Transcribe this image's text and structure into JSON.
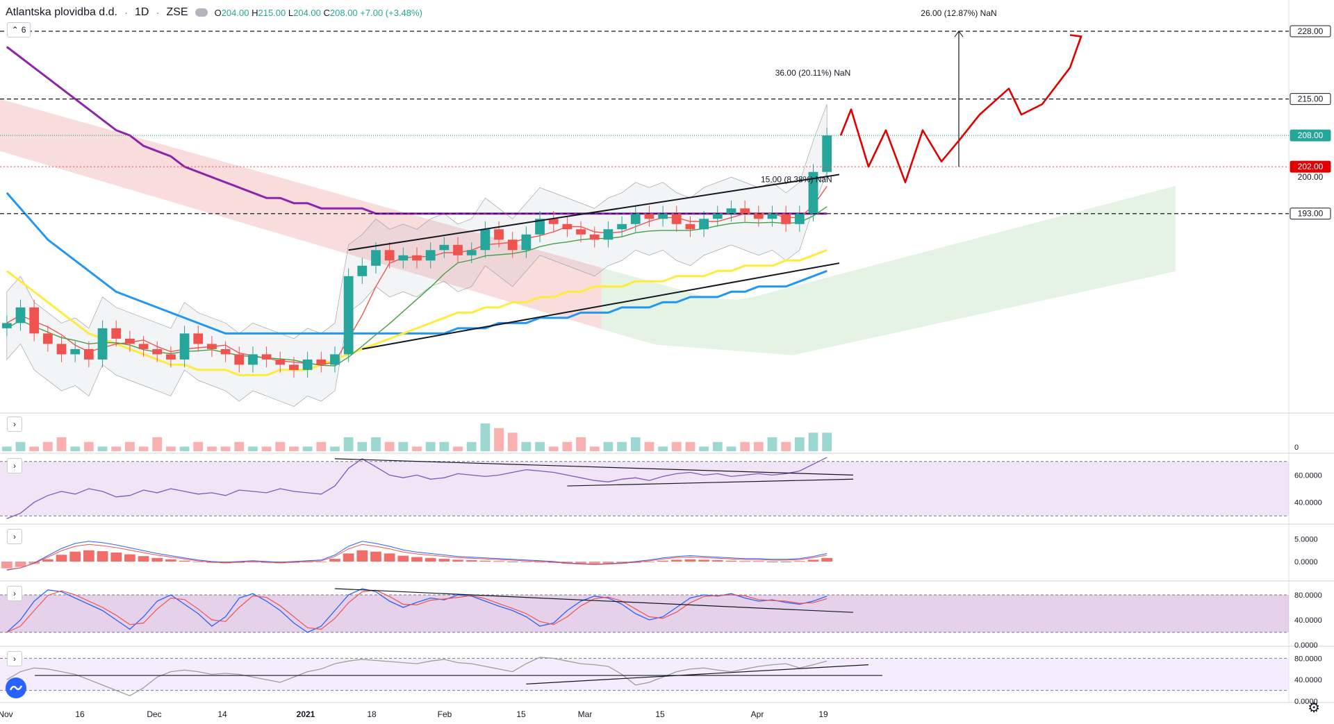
{
  "legend": {
    "symbol": "Atlantska plovidba d.d.",
    "interval": "1D",
    "exchange": "ZSE",
    "open_label": "O",
    "open": "204.00",
    "high_label": "H",
    "high": "215.00",
    "low_label": "L",
    "low": "204.00",
    "close_label": "C",
    "close": "208.00",
    "change": "+7.00 (+3.48%)",
    "indicator_count": "6"
  },
  "colors": {
    "up": "#26a69a",
    "down": "#ef5350",
    "ma200": "#8e24aa",
    "ma100": "#2196f3",
    "ma50": "#ffeb3b",
    "ichimoku_bull": "#a5d6a7",
    "ichimoku_bear": "#ef9a9a",
    "drawing": "#e00000"
  },
  "chart_data": [
    {
      "type": "line",
      "panel": "price",
      "ylim": [
        155,
        230
      ],
      "price_labels": [
        {
          "value": 228,
          "text": "228.00",
          "style": "dashed-line"
        },
        {
          "value": 215,
          "text": "215.00",
          "style": "dashed-line"
        },
        {
          "value": 208,
          "text": "208.00",
          "style": "last-price"
        },
        {
          "value": 202,
          "text": "202.00",
          "style": "red-dotted"
        },
        {
          "value": 200,
          "text": "200.00",
          "style": "tick"
        },
        {
          "value": 193,
          "text": "193.00",
          "style": "dashed-line"
        }
      ],
      "x_ticks": [
        "Nov",
        "16",
        "Dec",
        "14",
        "2021",
        "18",
        "Feb",
        "15",
        "Mar",
        "15",
        "Apr",
        "19"
      ],
      "annotations": [
        "26.00 (12.87%) NaN",
        "36.00 (20.11%) NaN",
        "15.00 (8.38%) NaN"
      ],
      "series": [
        {
          "name": "candles_close",
          "values": [
            172,
            175,
            170,
            168,
            166,
            167,
            165,
            171,
            169,
            168,
            167,
            166,
            165,
            170,
            168,
            167,
            166,
            164,
            166,
            165,
            164,
            163,
            165,
            164,
            166,
            181,
            183,
            186,
            184,
            185,
            184,
            186,
            187,
            185,
            186,
            190,
            188,
            186,
            189,
            192,
            191,
            190,
            189,
            188,
            190,
            191,
            193,
            192,
            193,
            191,
            190,
            192,
            193,
            194,
            193,
            192,
            193,
            191,
            193,
            201,
            208
          ]
        },
        {
          "name": "ma200",
          "values": [
            225,
            223,
            221,
            219,
            217,
            215,
            213,
            211,
            209,
            208,
            206,
            205,
            204,
            202,
            201,
            200,
            199,
            198,
            197,
            196,
            196,
            195,
            195,
            194,
            194,
            194,
            194,
            193,
            193,
            193,
            193,
            193,
            193,
            193,
            193,
            193,
            193,
            193,
            193,
            193,
            193,
            193,
            193,
            193,
            193,
            193,
            193,
            193,
            193,
            193,
            193,
            193,
            193,
            193,
            193,
            193,
            193,
            193,
            193,
            193,
            193
          ]
        },
        {
          "name": "ma100",
          "values": [
            197,
            194,
            191,
            188,
            186,
            184,
            182,
            180,
            178,
            177,
            176,
            175,
            174,
            173,
            172,
            171,
            170,
            170,
            170,
            170,
            170,
            170,
            170,
            170,
            170,
            170,
            170,
            170,
            170,
            170,
            170,
            170,
            170,
            171,
            171,
            171,
            172,
            172,
            172,
            173,
            173,
            173,
            174,
            174,
            174,
            175,
            175,
            175,
            176,
            176,
            177,
            177,
            177,
            178,
            178,
            179,
            179,
            179,
            180,
            181,
            182
          ]
        },
        {
          "name": "ma50",
          "values": [
            182,
            180,
            178,
            176,
            174,
            172,
            170,
            169,
            168,
            167,
            166,
            165,
            164,
            164,
            163,
            163,
            163,
            162,
            162,
            162,
            163,
            163,
            163,
            164,
            165,
            166,
            167,
            168,
            169,
            170,
            171,
            172,
            173,
            174,
            174,
            175,
            175,
            176,
            176,
            177,
            177,
            178,
            178,
            179,
            179,
            179,
            180,
            180,
            180,
            181,
            181,
            181,
            182,
            182,
            183,
            183,
            183,
            184,
            184,
            185,
            186
          ]
        }
      ]
    },
    {
      "type": "bar",
      "panel": "volume",
      "ylabels": [
        "0"
      ],
      "values": [
        1,
        2,
        1,
        2,
        3,
        1,
        2,
        1,
        1,
        2,
        1,
        3,
        1,
        1,
        2,
        1,
        1,
        2,
        1,
        1,
        2,
        1,
        1,
        2,
        1,
        3,
        2,
        3,
        2,
        2,
        1,
        2,
        2,
        1,
        2,
        6,
        5,
        4,
        2,
        2,
        1,
        2,
        3,
        1,
        2,
        2,
        3,
        2,
        1,
        2,
        2,
        1,
        2,
        1,
        2,
        2,
        3,
        2,
        3,
        4,
        4
      ]
    },
    {
      "type": "line",
      "panel": "rsi",
      "ylabels": [
        "60.0000",
        "40.0000"
      ],
      "ylim": [
        25,
        75
      ],
      "values": [
        28,
        32,
        40,
        45,
        48,
        46,
        50,
        48,
        44,
        45,
        49,
        47,
        50,
        48,
        46,
        47,
        45,
        49,
        48,
        47,
        50,
        48,
        47,
        46,
        52,
        65,
        72,
        66,
        60,
        58,
        60,
        57,
        58,
        61,
        60,
        59,
        60,
        62,
        64,
        63,
        62,
        60,
        58,
        56,
        55,
        57,
        58,
        56,
        59,
        61,
        62,
        60,
        61,
        59,
        60,
        61,
        60,
        61,
        63,
        68,
        73
      ]
    },
    {
      "type": "bar",
      "panel": "macd",
      "ylabels": [
        "5.0000",
        "0.0000"
      ],
      "ylim": [
        -4,
        8
      ],
      "values": [
        -1.5,
        -1.2,
        -0.5,
        0.5,
        1.5,
        2.2,
        2.5,
        2.3,
        2,
        1.6,
        1.2,
        0.8,
        0.5,
        0.2,
        -0.1,
        -0.3,
        -0.4,
        -0.3,
        -0.2,
        -0.3,
        -0.4,
        -0.3,
        -0.2,
        -0.1,
        0.6,
        1.8,
        2.5,
        2.2,
        1.8,
        1.3,
        1,
        0.8,
        0.6,
        0.4,
        0.3,
        0.2,
        0.1,
        0,
        -0.1,
        -0.2,
        -0.3,
        -0.5,
        -0.6,
        -0.7,
        -0.6,
        -0.5,
        -0.3,
        -0.1,
        0.2,
        0.4,
        0.5,
        0.4,
        0.3,
        0.2,
        0.1,
        0.1,
        0,
        0,
        0.1,
        0.4,
        0.8
      ]
    },
    {
      "type": "line",
      "panel": "stoch_rsi",
      "ylabels": [
        "80.0000",
        "40.0000",
        "0.0000"
      ],
      "ylim": [
        0,
        100
      ],
      "values": [
        20,
        40,
        70,
        88,
        85,
        75,
        65,
        55,
        40,
        25,
        45,
        70,
        80,
        65,
        50,
        30,
        45,
        75,
        82,
        70,
        55,
        35,
        20,
        30,
        55,
        80,
        90,
        85,
        70,
        60,
        68,
        75,
        72,
        80,
        78,
        70,
        62,
        55,
        45,
        30,
        35,
        55,
        70,
        78,
        75,
        65,
        50,
        40,
        45,
        60,
        75,
        80,
        78,
        82,
        75,
        70,
        72,
        68,
        65,
        70,
        78
      ]
    },
    {
      "type": "line",
      "panel": "oscillator",
      "ylabels": [
        "80.0000",
        "40.0000",
        "0.0000"
      ],
      "ylim": [
        0,
        100
      ],
      "values": [
        40,
        55,
        62,
        60,
        55,
        50,
        40,
        30,
        20,
        10,
        25,
        45,
        55,
        58,
        55,
        50,
        52,
        50,
        45,
        40,
        35,
        45,
        55,
        60,
        70,
        75,
        78,
        76,
        74,
        72,
        70,
        75,
        78,
        72,
        70,
        65,
        60,
        55,
        70,
        82,
        80,
        75,
        70,
        68,
        65,
        50,
        30,
        35,
        45,
        55,
        60,
        62,
        58,
        55,
        60,
        65,
        68,
        70,
        62,
        68,
        75
      ]
    }
  ]
}
